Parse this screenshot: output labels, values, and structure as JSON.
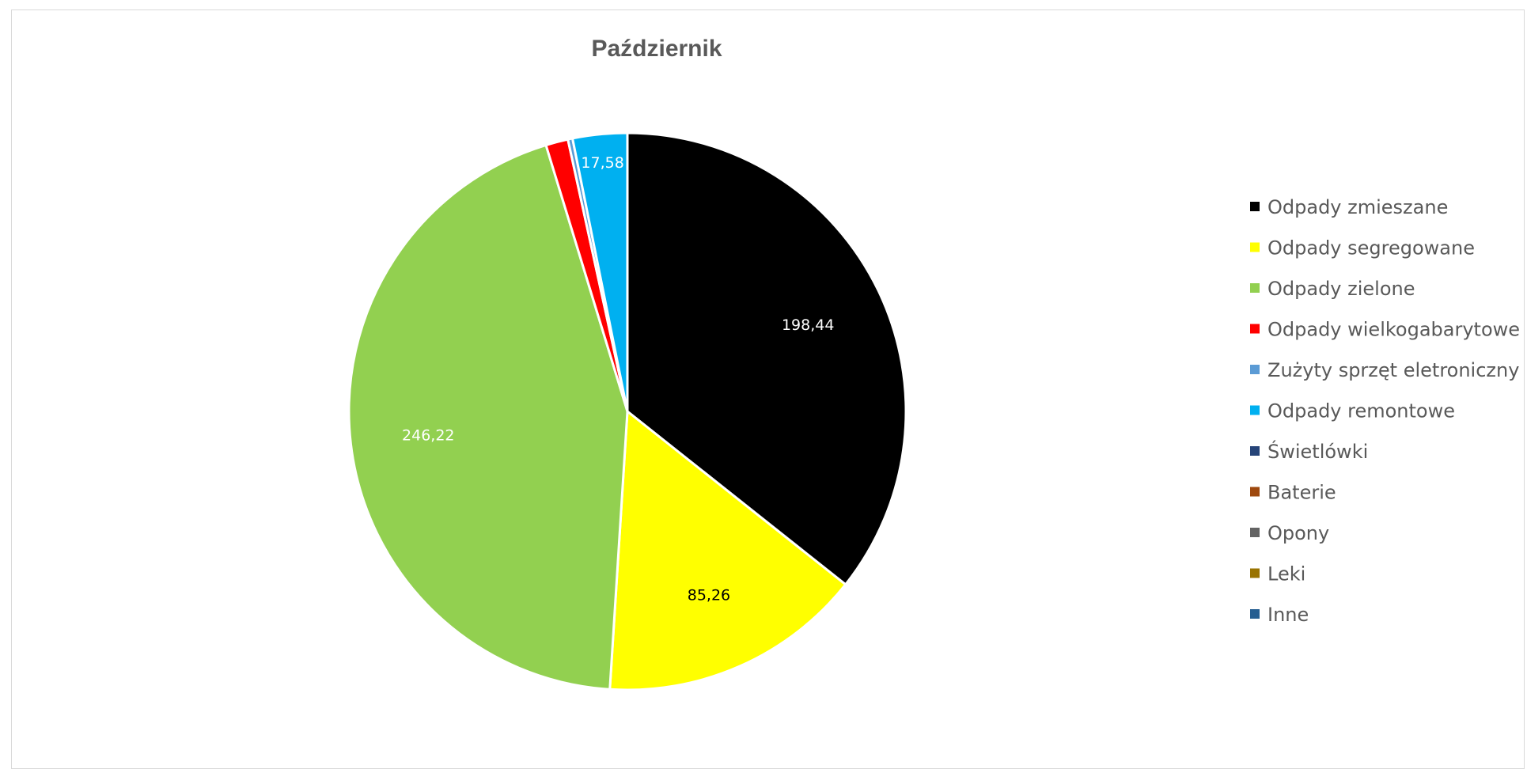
{
  "chart_data": {
    "type": "pie",
    "title": "Październik",
    "legend_position": "right",
    "categories": [
      "Odpady zmieszane",
      "Odpady segregowane",
      "Odpady zielone",
      "Odpady wielkogabarytowe",
      "Zużyty sprzęt eletroniczny",
      "Odpady remontowe",
      "Świetlówki",
      "Baterie",
      "Opony",
      "Leki",
      "Inne"
    ],
    "values": [
      198.44,
      85.26,
      246.22,
      7.2,
      1.5,
      17.58,
      0,
      0,
      0,
      0,
      0
    ],
    "data_labels": [
      "198,44",
      "85,26",
      "246,22",
      "",
      "",
      "17,58",
      "",
      "",
      "",
      "",
      ""
    ],
    "colors": [
      "#000000",
      "#FFFF00",
      "#92D050",
      "#FF0000",
      "#5B9BD5",
      "#00B0F0",
      "#264478",
      "#9E480E",
      "#636363",
      "#997300",
      "#255E91"
    ],
    "label_colors": [
      "#ffffff",
      "#000000",
      "#ffffff",
      "#ffffff",
      "#ffffff",
      "#ffffff",
      "#ffffff",
      "#ffffff",
      "#ffffff",
      "#ffffff",
      "#ffffff"
    ]
  }
}
